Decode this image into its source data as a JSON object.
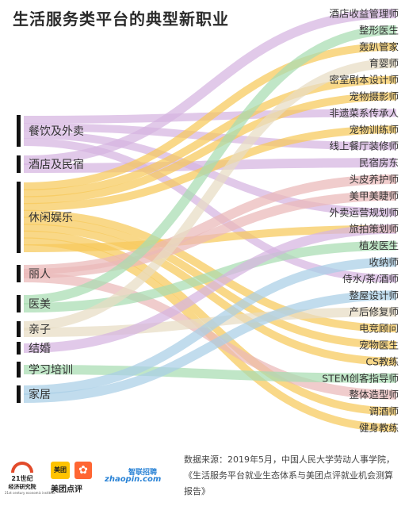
{
  "colors": {
    "purple": "#d6b4e0",
    "yellow": "#f7c95a",
    "green": "#a8dcb2",
    "pink": "#eab8b8",
    "beige": "#e7dcc4",
    "blue": "#a9cfe6",
    "bar": "#111111"
  },
  "chart_data": {
    "type": "sankey",
    "title": "生活服务类平台的典型新职业",
    "sources": [
      "餐饮及外卖",
      "酒店及民宿",
      "休闲娱乐",
      "丽人",
      "医美",
      "亲子",
      "结婚",
      "学习培训",
      "家居"
    ],
    "targets": [
      "酒店收益管理师",
      "整形医生",
      "轰趴管家",
      "育婴师",
      "密室剧本设计师",
      "宠物摄影师",
      "非遗菜系传承人",
      "宠物训练师",
      "线上餐厅装修师",
      "民宿房东",
      "头皮养护师",
      "美甲美睫师",
      "外卖运营规划师",
      "旅拍策划师",
      "植发医生",
      "收纳师",
      "侍水/茶/酒师",
      "整屋设计师",
      "产后修复师",
      "电竞顾问",
      "宠物医生",
      "CS教练",
      "STEM创客指导师",
      "整体造型师",
      "调酒师",
      "健身教练"
    ],
    "links": [
      {
        "source": "餐饮及外卖",
        "target": "非遗菜系传承人"
      },
      {
        "source": "餐饮及外卖",
        "target": "线上餐厅装修师"
      },
      {
        "source": "餐饮及外卖",
        "target": "外卖运营规划师"
      },
      {
        "source": "餐饮及外卖",
        "target": "侍水/茶/酒师"
      },
      {
        "source": "酒店及民宿",
        "target": "酒店收益管理师"
      },
      {
        "source": "酒店及民宿",
        "target": "民宿房东"
      },
      {
        "source": "休闲娱乐",
        "target": "轰趴管家"
      },
      {
        "source": "休闲娱乐",
        "target": "密室剧本设计师"
      },
      {
        "source": "休闲娱乐",
        "target": "宠物摄影师"
      },
      {
        "source": "休闲娱乐",
        "target": "宠物训练师"
      },
      {
        "source": "休闲娱乐",
        "target": "电竞顾问"
      },
      {
        "source": "休闲娱乐",
        "target": "宠物医生"
      },
      {
        "source": "休闲娱乐",
        "target": "CS教练"
      },
      {
        "source": "休闲娱乐",
        "target": "调酒师"
      },
      {
        "source": "休闲娱乐",
        "target": "健身教练"
      },
      {
        "source": "休闲娱乐",
        "target": "旅拍策划师"
      },
      {
        "source": "丽人",
        "target": "头皮养护师"
      },
      {
        "source": "丽人",
        "target": "美甲美睫师"
      },
      {
        "source": "丽人",
        "target": "整体造型师"
      },
      {
        "source": "医美",
        "target": "整形医生"
      },
      {
        "source": "医美",
        "target": "植发医生"
      },
      {
        "source": "亲子",
        "target": "育婴师"
      },
      {
        "source": "亲子",
        "target": "产后修复师"
      },
      {
        "source": "结婚",
        "target": "旅拍策划师"
      },
      {
        "source": "学习培训",
        "target": "STEM创客指导师"
      },
      {
        "source": "家居",
        "target": "收纳师"
      },
      {
        "source": "家居",
        "target": "整屋设计师"
      }
    ]
  },
  "footer": {
    "logo_21_line1": "21世纪",
    "logo_21_line2": "经济研究院",
    "logo_21_line3": "21st century economic institute",
    "meituan_square": "美团",
    "meituan_text": "美团点评",
    "zhaopin_top": "智联招聘",
    "zhaopin_main": "zhaopin.com",
    "source_text": "数据来源：2019年5月，中国人民大学劳动人事学院，《生活服务平台就业生态体系与美团点评就业机会测算报告》"
  }
}
